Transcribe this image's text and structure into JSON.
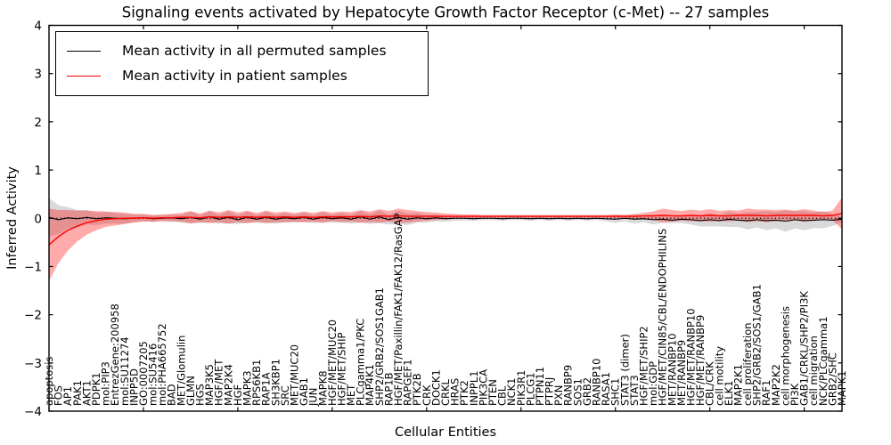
{
  "chart_data": {
    "type": "line",
    "title": "Signaling events activated by Hepatocyte Growth Factor Receptor (c-Met) -- 27 samples",
    "xlabel": "Cellular Entities",
    "ylabel": "Inferred Activity",
    "ylim": [
      -4,
      4
    ],
    "yticks": [
      "4",
      "3",
      "2",
      "1",
      "0",
      "−1",
      "−2",
      "−3",
      "−4"
    ],
    "grid": false,
    "legend_position": "upper left",
    "zero_line": "dotted",
    "categories": [
      "apoptosis",
      "FOS",
      "AP1",
      "PAK1",
      "AKT1",
      "PDPK1",
      "mol:PIP3",
      "EntrezGene:200958",
      "mol:SU11274",
      "INPP5D",
      "GO:0007205",
      "mol:SU5416",
      "mol:PHA665752",
      "BAD",
      "MET/Glomulin",
      "GLMN",
      "HGS",
      "MAP3K5",
      "HGF/MET",
      "MAP2K4",
      "HGF",
      "MAPK3",
      "RPS6KB1",
      "RAP1A",
      "SH3KBP1",
      "SRC",
      "MET/MUC20",
      "GAB1",
      "JUN",
      "MAPK8",
      "HGF/MET/MUC20",
      "HGF/MET/SHIP",
      "MET",
      "PLCgamma1/PKC",
      "MAP4K1",
      "SHP2/GRB2/SOS1GAB1",
      "RAP1B",
      "HGF/MET/Paxillin/FAK1/FAK12/RasGAP",
      "RAPGEF1",
      "PTK2B",
      "CRK",
      "DOCK1",
      "CRKL",
      "HRAS",
      "PTK2",
      "INPPL1",
      "PIK3CA",
      "PTEN",
      "CBL",
      "NCK1",
      "PIK3R1",
      "PLCG1",
      "PTPN11",
      "PTPRJ",
      "PXN",
      "RANBP9",
      "SOS1",
      "GRB2",
      "RANBP10",
      "RASA1",
      "SHC1",
      "STAT3 (dimer)",
      "STAT3",
      "HGF/MET/SHIP2",
      "mol:GDP",
      "HGF/MET/CIN85/CBL/ENDOPHILINS",
      "MET/RANBP10",
      "MET/RANBP9",
      "HGF/MET/RANBP10",
      "HGF/MET/RANBP9",
      "CBL/CRK",
      "cell motility",
      "ELK1",
      "MAP2K1",
      "cell proliferation",
      "SHP2/GRB2/SOS1/GAB1",
      "RAF1",
      "MAP2K2",
      "cell morphogenesis",
      "PI3K",
      "GAB1/CRKL/SHP2/PI3K",
      "cell migration",
      "NCK/PLCgamma1",
      "GRB2/SHC",
      "MAPK1"
    ],
    "series": [
      {
        "name": "Mean activity in all permuted samples",
        "color": "#000000",
        "band_color": "#808080",
        "values": [
          0.02,
          -0.03,
          0.01,
          -0.01,
          0.02,
          -0.01,
          0.01,
          0.0,
          -0.01,
          0.0,
          0.01,
          -0.01,
          0.0,
          0.01,
          -0.01,
          0.02,
          -0.02,
          0.03,
          -0.02,
          0.02,
          -0.03,
          0.02,
          -0.02,
          0.02,
          -0.02,
          0.01,
          -0.01,
          0.02,
          -0.02,
          0.02,
          -0.01,
          0.01,
          -0.02,
          0.03,
          -0.02,
          0.03,
          -0.03,
          0.02,
          -0.02,
          0.01,
          -0.01,
          0.01,
          -0.01,
          0.0,
          0.0,
          -0.01,
          0.0,
          0.0,
          -0.01,
          0.0,
          0.0,
          -0.01,
          0.0,
          -0.01,
          0.0,
          -0.01,
          0.0,
          -0.01,
          0.0,
          -0.01,
          -0.02,
          0.0,
          -0.02,
          -0.01,
          -0.03,
          -0.02,
          -0.04,
          -0.02,
          -0.03,
          -0.05,
          -0.03,
          -0.05,
          -0.02,
          -0.04,
          -0.05,
          -0.03,
          -0.05,
          -0.04,
          -0.06,
          -0.03,
          -0.05,
          -0.04,
          -0.03,
          -0.04,
          -0.02
        ],
        "std": [
          0.4,
          0.3,
          0.22,
          0.18,
          0.15,
          0.13,
          0.12,
          0.11,
          0.1,
          0.08,
          0.07,
          0.07,
          0.06,
          0.07,
          0.08,
          0.12,
          0.08,
          0.12,
          0.09,
          0.13,
          0.09,
          0.12,
          0.08,
          0.12,
          0.09,
          0.1,
          0.08,
          0.1,
          0.08,
          0.11,
          0.08,
          0.1,
          0.09,
          0.12,
          0.1,
          0.13,
          0.1,
          0.14,
          0.12,
          0.1,
          0.08,
          0.07,
          0.06,
          0.05,
          0.05,
          0.04,
          0.04,
          0.04,
          0.04,
          0.04,
          0.04,
          0.04,
          0.04,
          0.04,
          0.04,
          0.04,
          0.04,
          0.04,
          0.04,
          0.05,
          0.08,
          0.06,
          0.09,
          0.07,
          0.1,
          0.08,
          0.06,
          0.08,
          0.1,
          0.12,
          0.14,
          0.12,
          0.16,
          0.14,
          0.18,
          0.16,
          0.2,
          0.17,
          0.22,
          0.18,
          0.2,
          0.16,
          0.18,
          0.12,
          0.06
        ]
      },
      {
        "name": "Mean activity in patient samples",
        "color": "#ff0000",
        "band_color": "#ff0000",
        "values": [
          -0.55,
          -0.38,
          -0.25,
          -0.16,
          -0.09,
          -0.05,
          -0.02,
          -0.01,
          0.0,
          0.0,
          0.01,
          0.0,
          0.01,
          0.01,
          0.02,
          0.02,
          0.01,
          0.03,
          0.02,
          0.03,
          0.02,
          0.03,
          0.02,
          0.03,
          0.02,
          0.03,
          0.02,
          0.03,
          0.02,
          0.03,
          0.03,
          0.03,
          0.03,
          0.04,
          0.03,
          0.05,
          0.04,
          0.05,
          0.04,
          0.04,
          0.04,
          0.04,
          0.04,
          0.04,
          0.04,
          0.04,
          0.04,
          0.04,
          0.04,
          0.04,
          0.04,
          0.04,
          0.04,
          0.04,
          0.04,
          0.04,
          0.04,
          0.04,
          0.04,
          0.04,
          0.04,
          0.04,
          0.04,
          0.05,
          0.05,
          0.06,
          0.05,
          0.05,
          0.06,
          0.05,
          0.06,
          0.05,
          0.05,
          0.06,
          0.06,
          0.06,
          0.05,
          0.06,
          0.06,
          0.06,
          0.06,
          0.06,
          0.05,
          0.06,
          0.1
        ],
        "std": [
          0.75,
          0.55,
          0.42,
          0.32,
          0.25,
          0.2,
          0.16,
          0.14,
          0.12,
          0.09,
          0.08,
          0.07,
          0.07,
          0.08,
          0.09,
          0.13,
          0.09,
          0.13,
          0.1,
          0.14,
          0.1,
          0.13,
          0.09,
          0.13,
          0.1,
          0.11,
          0.09,
          0.11,
          0.09,
          0.12,
          0.09,
          0.11,
          0.1,
          0.13,
          0.11,
          0.14,
          0.11,
          0.15,
          0.13,
          0.11,
          0.09,
          0.08,
          0.06,
          0.05,
          0.04,
          0.04,
          0.03,
          0.03,
          0.03,
          0.03,
          0.03,
          0.03,
          0.03,
          0.03,
          0.03,
          0.03,
          0.03,
          0.03,
          0.03,
          0.03,
          0.04,
          0.03,
          0.05,
          0.06,
          0.09,
          0.14,
          0.12,
          0.1,
          0.12,
          0.11,
          0.13,
          0.1,
          0.12,
          0.1,
          0.14,
          0.12,
          0.13,
          0.11,
          0.12,
          0.1,
          0.13,
          0.1,
          0.08,
          0.1,
          0.33
        ]
      }
    ]
  }
}
